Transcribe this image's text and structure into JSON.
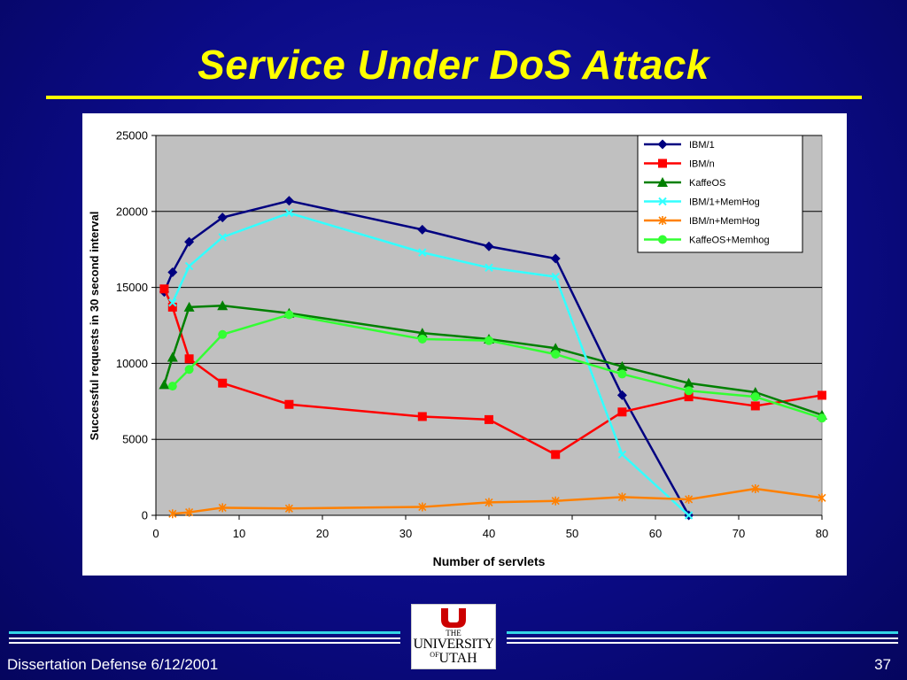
{
  "slide": {
    "title": "Service Under DoS Attack",
    "footer_left": "Dissertation Defense 6/12/2001",
    "page_number": "37",
    "logo": {
      "line1": "THE",
      "line2": "UNIVERSITY",
      "line3_of": "OF",
      "line3": "UTAH"
    }
  },
  "colors": {
    "background": "#0b0b86",
    "title": "#ffff00",
    "plot_area": "#c0c0c0"
  },
  "chart_data": {
    "type": "line",
    "xlabel": "Number of servlets",
    "ylabel": "Successful requests in 30 second interval",
    "xlim": [
      0,
      80
    ],
    "ylim": [
      0,
      25000
    ],
    "xticks": [
      0,
      10,
      20,
      30,
      40,
      50,
      60,
      70,
      80
    ],
    "yticks": [
      0,
      5000,
      10000,
      15000,
      20000,
      25000
    ],
    "grid": "horizontal",
    "legend_position": "top-right",
    "series": [
      {
        "name": "IBM/1",
        "color": "#000080",
        "marker": "diamond",
        "x": [
          1,
          2,
          4,
          8,
          16,
          32,
          40,
          48,
          56,
          64
        ],
        "y": [
          14700,
          16000,
          18000,
          19600,
          20700,
          18800,
          17700,
          16900,
          7900,
          0
        ]
      },
      {
        "name": "IBM/n",
        "color": "#ff0000",
        "marker": "square",
        "x": [
          1,
          2,
          4,
          8,
          16,
          32,
          40,
          48,
          56,
          64,
          72,
          80
        ],
        "y": [
          14900,
          13700,
          10300,
          8700,
          7300,
          6500,
          6300,
          4000,
          6800,
          7800,
          7200,
          7900
        ]
      },
      {
        "name": "KaffeOS",
        "color": "#008000",
        "marker": "triangle",
        "x": [
          1,
          2,
          4,
          8,
          16,
          32,
          40,
          48,
          56,
          64,
          72,
          80
        ],
        "y": [
          8600,
          10400,
          13700,
          13800,
          13300,
          12000,
          11600,
          11000,
          9800,
          8700,
          8100,
          6600
        ]
      },
      {
        "name": "IBM/1+MemHog",
        "color": "#33ffff",
        "marker": "x",
        "x": [
          2,
          4,
          8,
          16,
          32,
          40,
          48,
          56,
          64
        ],
        "y": [
          14000,
          16400,
          18300,
          19900,
          17300,
          16300,
          15700,
          4000,
          0
        ]
      },
      {
        "name": "IBM/n+MemHog",
        "color": "#ff8000",
        "marker": "star",
        "x": [
          2,
          4,
          8,
          16,
          32,
          40,
          48,
          56,
          64,
          72,
          80
        ],
        "y": [
          100,
          200,
          500,
          450,
          550,
          850,
          950,
          1200,
          1050,
          1750,
          1150
        ]
      },
      {
        "name": "KaffeOS+Memhog",
        "color": "#33ff33",
        "marker": "circle",
        "x": [
          2,
          4,
          8,
          16,
          32,
          40,
          48,
          56,
          64,
          72,
          80
        ],
        "y": [
          8500,
          9600,
          11900,
          13200,
          11600,
          11500,
          10600,
          9300,
          8200,
          7800,
          6400
        ]
      }
    ]
  }
}
